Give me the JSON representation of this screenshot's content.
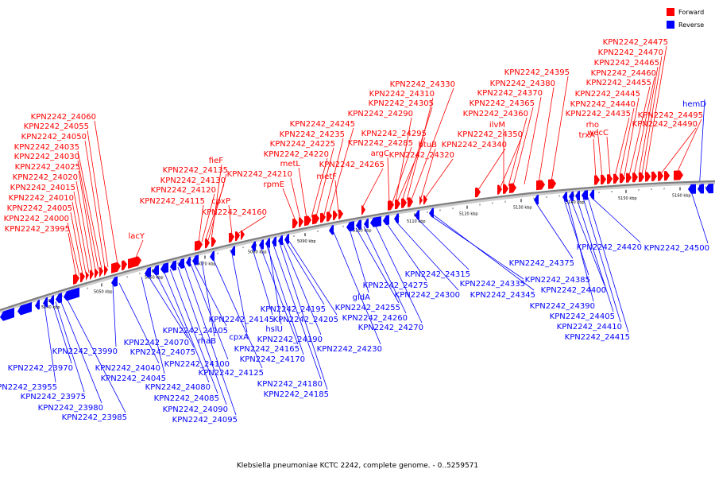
{
  "caption": "Klebsiella pneumoniae KCTC 2242, complete genome. - 0..5259571",
  "colors": {
    "forward": "#ff0000",
    "reverse": "#0000ff",
    "backbone": "#7f7f7f"
  },
  "legend": [
    {
      "label": "Forward",
      "color": "#ff0000"
    },
    {
      "label": "Reverse",
      "color": "#0000ff"
    }
  ],
  "scale_labels": [
    "5040 kbp",
    "5050 kbp",
    "5060 kbp",
    "5070 kbp",
    "5080 kbp",
    "5090 kbp",
    "5100 kbp",
    "5110 kbp",
    "5120 kbp",
    "5130 kbp",
    "5140 kbp",
    "5150 kbp",
    "5160 kbp"
  ],
  "forward_genes": [
    "lacY",
    "KPN2242_23995",
    "KPN2242_24000",
    "KPN2242_24005",
    "KPN2242_24010",
    "KPN2242_24015",
    "KPN2242_24020",
    "KPN2242_24025",
    "KPN2242_24030",
    "KPN2242_24035",
    "KPN2242_24050",
    "KPN2242_24055",
    "KPN2242_24060",
    "fieF",
    "KPN2242_24135",
    "KPN2242_24130",
    "KPN2242_24120",
    "KPN2242_24115",
    "cpxP",
    "KPN2242_24160",
    "rpmE",
    "KPN2242_24210",
    "metL",
    "KPN2242_24220",
    "KPN2242_24225",
    "KPN2242_24235",
    "KPN2242_24245",
    "metF",
    "KPN2242_24265",
    "argC",
    "KPN2242_24285",
    "KPN2242_24295",
    "KPN2242_24290",
    "KPN2242_24305",
    "KPN2242_24310",
    "KPN2242_24330",
    "btuB",
    "KPN2242_24320",
    "KPN2242_24340",
    "KPN2242_24350",
    "ilvM",
    "KPN2242_24360",
    "KPN2242_24365",
    "KPN2242_24370",
    "KPN2242_24380",
    "KPN2242_24395",
    "trxA",
    "rho",
    "wecC",
    "KPN2242_24435",
    "KPN2242_24440",
    "KPN2242_24445",
    "KPN2242_24455",
    "KPN2242_24460",
    "KPN2242_24465",
    "KPN2242_24470",
    "KPN2242_24475",
    "KPN2242_24490",
    "KPN2242_24495"
  ],
  "reverse_genes": [
    "KPN2242_23955",
    "KPN2242_23970",
    "KPN2242_23975",
    "KPN2242_23980",
    "KPN2242_23985",
    "KPN2242_23990",
    "KPN2242_24040",
    "KPN2242_24045",
    "KPN2242_24070",
    "KPN2242_24075",
    "KPN2242_24080",
    "KPN2242_24085",
    "KPN2242_24090",
    "KPN2242_24095",
    "KPN2242_24100",
    "KPN2242_24105",
    "rhaB",
    "KPN2242_24125",
    "cpxA",
    "KPN2242_24145",
    "KPN2242_24165",
    "KPN2242_24170",
    "hslU",
    "KPN2242_24180",
    "KPN2242_24185",
    "KPN2242_24190",
    "KPN2242_24195",
    "KPN2242_24205",
    "KPN2242_24230",
    "gldA",
    "KPN2242_24255",
    "KPN2242_24260",
    "KPN2242_24270",
    "KPN2242_24275",
    "KPN2242_24300",
    "KPN2242_24315",
    "KPN2242_24335",
    "KPN2242_24345",
    "KPN2242_24375",
    "KPN2242_24385",
    "KPN2242_24390",
    "KPN2242_24400",
    "KPN2242_24405",
    "KPN2242_24410",
    "KPN2242_24415",
    "KPN2242_24420",
    "hemD",
    "KPN2242_24500"
  ]
}
